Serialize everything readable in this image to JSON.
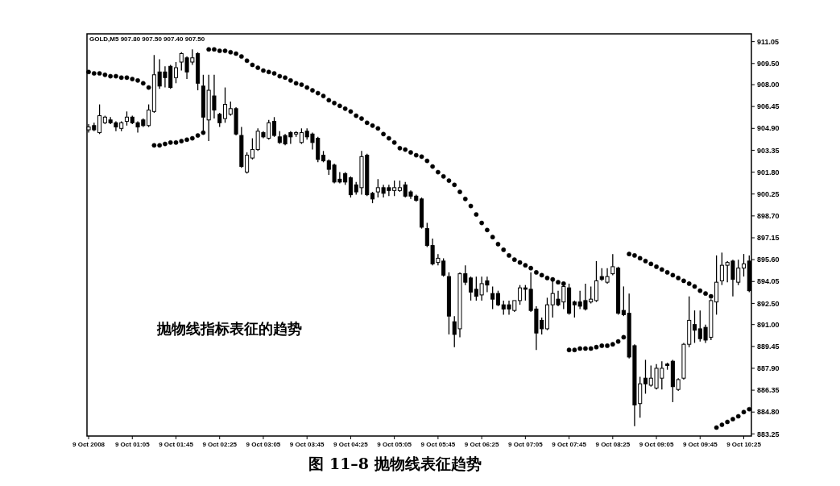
{
  "chart_data": {
    "type": "candlestick",
    "title": "图 11–8   抛物线表征趋势",
    "annotations": [
      "GOLD,M5 907.80 907.50 907.40 907.50",
      "抛物线指标表征的趋势"
    ],
    "categories": [
      "9 Oct 2008",
      null,
      null,
      null,
      null,
      null,
      null,
      null,
      "9 Oct 01:05",
      null,
      null,
      null,
      null,
      null,
      null,
      null,
      "9 Oct 01:45",
      null,
      null,
      null,
      null,
      null,
      null,
      null,
      "9 Oct 02:25",
      null,
      null,
      null,
      null,
      null,
      null,
      null,
      "9 Oct 03:05",
      null,
      null,
      null,
      null,
      null,
      null,
      null,
      "9 Oct 03:45",
      null,
      null,
      null,
      null,
      null,
      null,
      null,
      "9 Oct 04:25",
      null,
      null,
      null,
      null,
      null,
      null,
      null,
      "9 Oct 05:05",
      null,
      null,
      null,
      null,
      null,
      null,
      null,
      "9 Oct 05:45",
      null,
      null,
      null,
      null,
      null,
      null,
      null,
      "9 Oct 06:25",
      null,
      null,
      null,
      null,
      null,
      null,
      null,
      "9 Oct 07:05",
      null,
      null,
      null,
      null,
      null,
      null,
      null,
      "9 Oct 07:45",
      null,
      null,
      null,
      null,
      null,
      null,
      null,
      "9 Oct 08:25",
      null,
      null,
      null,
      null,
      null,
      null,
      null,
      "9 Oct 09:05",
      null,
      null,
      null,
      null,
      null,
      null,
      null,
      "9 Oct 09:45",
      null,
      null,
      null,
      null,
      null,
      null,
      null,
      "9 Oct 10:25",
      null
    ],
    "ohlc": [
      [
        904.8,
        905.2,
        904.6,
        905.0
      ],
      [
        905.1,
        905.3,
        904.7,
        904.8
      ],
      [
        904.6,
        906.6,
        904.5,
        905.8
      ],
      [
        905.3,
        905.8,
        905.2,
        905.7
      ],
      [
        905.5,
        905.7,
        905.2,
        905.3
      ],
      [
        905.3,
        905.4,
        904.7,
        905.0
      ],
      [
        904.9,
        905.4,
        904.7,
        905.3
      ],
      [
        905.4,
        906.1,
        905.1,
        905.7
      ],
      [
        905.7,
        905.8,
        905.2,
        905.3
      ],
      [
        905.3,
        905.4,
        904.6,
        905.0
      ],
      [
        905.5,
        905.6,
        905.0,
        905.1
      ],
      [
        905.1,
        906.6,
        905.0,
        906.2
      ],
      [
        906.1,
        910.1,
        906.0,
        908.7
      ],
      [
        908.9,
        909.8,
        907.7,
        907.9
      ],
      [
        908.9,
        909.3,
        907.8,
        908.5
      ],
      [
        909.3,
        909.4,
        907.7,
        907.8
      ],
      [
        908.5,
        909.6,
        908.1,
        909.2
      ],
      [
        909.6,
        910.3,
        909.0,
        910.2
      ],
      [
        909.9,
        910.0,
        908.4,
        908.9
      ],
      [
        909.6,
        910.5,
        909.4,
        909.9
      ],
      [
        910.2,
        910.3,
        907.6,
        908.1
      ],
      [
        907.9,
        908.7,
        904.7,
        905.7
      ],
      [
        905.5,
        908.7,
        904.0,
        907.6
      ],
      [
        907.2,
        908.7,
        905.6,
        906.2
      ],
      [
        905.9,
        906.0,
        905.0,
        905.3
      ],
      [
        905.6,
        907.8,
        905.3,
        906.6
      ],
      [
        905.9,
        906.8,
        905.8,
        906.3
      ],
      [
        906.3,
        906.4,
        904.4,
        904.5
      ],
      [
        904.4,
        905.0,
        902.1,
        902.2
      ],
      [
        901.8,
        903.2,
        901.7,
        903.0
      ],
      [
        902.8,
        904.2,
        902.7,
        903.4
      ],
      [
        903.4,
        904.9,
        903.3,
        904.7
      ],
      [
        904.6,
        904.7,
        904.2,
        904.3
      ],
      [
        904.2,
        905.5,
        904.1,
        905.3
      ],
      [
        905.4,
        905.7,
        904.3,
        904.4
      ],
      [
        904.3,
        904.7,
        903.8,
        903.9
      ],
      [
        904.4,
        904.5,
        903.7,
        903.8
      ],
      [
        904.6,
        904.7,
        903.8,
        904.3
      ],
      [
        904.5,
        904.7,
        904.3,
        904.6
      ],
      [
        903.9,
        904.9,
        903.8,
        904.6
      ],
      [
        904.7,
        904.9,
        904.1,
        904.3
      ],
      [
        904.5,
        904.6,
        903.4,
        903.9
      ],
      [
        904.2,
        904.3,
        902.5,
        902.7
      ],
      [
        903.0,
        903.3,
        902.5,
        902.6
      ],
      [
        902.6,
        902.7,
        901.6,
        902.0
      ],
      [
        902.3,
        902.4,
        901.0,
        901.1
      ],
      [
        901.3,
        901.8,
        901.0,
        901.1
      ],
      [
        901.7,
        901.8,
        900.9,
        901.1
      ],
      [
        901.4,
        901.5,
        900.0,
        900.2
      ],
      [
        900.9,
        901.1,
        900.2,
        900.4
      ],
      [
        900.7,
        903.3,
        900.2,
        902.9
      ],
      [
        903.0,
        903.1,
        900.1,
        900.2
      ],
      [
        900.3,
        900.4,
        899.6,
        899.9
      ],
      [
        900.4,
        901.3,
        900.0,
        900.7
      ],
      [
        900.7,
        900.9,
        900.0,
        900.3
      ],
      [
        900.7,
        900.9,
        900.1,
        900.5
      ],
      [
        900.5,
        901.2,
        900.1,
        900.7
      ],
      [
        900.5,
        901.2,
        900.4,
        900.7
      ],
      [
        900.9,
        901.1,
        900.0,
        900.1
      ],
      [
        900.4,
        900.5,
        899.9,
        900.1
      ],
      [
        900.1,
        900.2,
        899.7,
        899.8
      ],
      [
        899.9,
        900.0,
        897.8,
        897.9
      ],
      [
        897.8,
        898.2,
        896.5,
        896.6
      ],
      [
        896.6,
        897.1,
        895.2,
        895.3
      ],
      [
        895.4,
        896.0,
        895.2,
        895.7
      ],
      [
        895.5,
        895.7,
        894.4,
        894.5
      ],
      [
        894.4,
        894.7,
        890.3,
        891.6
      ],
      [
        891.2,
        891.6,
        889.4,
        890.3
      ],
      [
        890.7,
        894.7,
        890.1,
        894.6
      ],
      [
        894.6,
        895.2,
        893.8,
        894.0
      ],
      [
        894.3,
        894.4,
        892.7,
        893.3
      ],
      [
        893.5,
        894.4,
        892.7,
        893.0
      ],
      [
        893.1,
        894.4,
        892.7,
        893.9
      ],
      [
        894.1,
        894.4,
        893.3,
        893.8
      ],
      [
        893.2,
        893.7,
        892.1,
        892.8
      ],
      [
        893.2,
        893.4,
        892.3,
        892.4
      ],
      [
        892.4,
        892.7,
        891.7,
        892.1
      ],
      [
        892.4,
        892.7,
        891.7,
        892.1
      ],
      [
        892.0,
        892.7,
        891.9,
        892.7
      ],
      [
        892.7,
        893.8,
        892.4,
        893.6
      ],
      [
        893.6,
        893.8,
        892.7,
        893.5
      ],
      [
        893.5,
        894.7,
        891.9,
        892.0
      ],
      [
        892.1,
        892.3,
        889.2,
        890.4
      ],
      [
        891.3,
        891.5,
        890.3,
        890.7
      ],
      [
        890.7,
        892.9,
        890.6,
        892.4
      ],
      [
        892.4,
        894.2,
        891.5,
        893.2
      ],
      [
        892.8,
        893.4,
        892.3,
        892.4
      ],
      [
        892.6,
        893.9,
        892.1,
        893.7
      ],
      [
        893.6,
        893.9,
        891.7,
        891.8
      ],
      [
        892.6,
        892.7,
        891.5,
        892.4
      ],
      [
        892.6,
        893.4,
        892.1,
        892.3
      ],
      [
        892.7,
        893.9,
        892.0,
        892.1
      ],
      [
        892.6,
        893.7,
        892.5,
        892.8
      ],
      [
        892.7,
        895.5,
        892.6,
        894.1
      ],
      [
        894.4,
        895.0,
        894.1,
        894.2
      ],
      [
        894.0,
        895.0,
        893.9,
        894.4
      ],
      [
        894.6,
        896.0,
        894.5,
        895.1
      ],
      [
        895.0,
        895.1,
        891.7,
        891.8
      ],
      [
        892.0,
        893.7,
        891.6,
        891.7
      ],
      [
        891.8,
        893.2,
        888.6,
        888.7
      ],
      [
        889.5,
        889.6,
        883.8,
        885.3
      ],
      [
        885.4,
        887.3,
        884.4,
        886.8
      ],
      [
        887.2,
        888.5,
        886.1,
        886.8
      ],
      [
        886.7,
        888.1,
        886.6,
        887.2
      ],
      [
        886.5,
        888.2,
        886.4,
        887.9
      ],
      [
        887.2,
        888.4,
        886.4,
        887.9
      ],
      [
        888.2,
        888.3,
        887.8,
        888.1
      ],
      [
        888.4,
        888.5,
        885.5,
        886.6
      ],
      [
        886.4,
        887.2,
        886.3,
        887.1
      ],
      [
        887.2,
        889.7,
        887.1,
        889.6
      ],
      [
        889.6,
        893.0,
        889.4,
        891.3
      ],
      [
        891.0,
        892.0,
        889.7,
        890.6
      ],
      [
        890.7,
        892.0,
        889.8,
        890.0
      ],
      [
        890.8,
        891.0,
        889.7,
        889.9
      ],
      [
        890.1,
        892.8,
        889.9,
        892.7
      ],
      [
        892.6,
        895.9,
        891.7,
        894.0
      ],
      [
        894.1,
        896.1,
        893.8,
        895.2
      ],
      [
        895.2,
        895.5,
        894.0,
        895.4
      ],
      [
        895.5,
        895.6,
        893.0,
        894.2
      ],
      [
        894.0,
        895.6,
        893.8,
        895.0
      ],
      [
        895.0,
        896.0,
        894.4,
        895.3
      ],
      [
        895.5,
        895.9,
        893.3,
        893.4
      ]
    ],
    "series": [
      {
        "type": "scatter",
        "color": "#000000",
        "values": [
          908.9,
          908.8,
          908.8,
          908.7,
          908.6,
          908.6,
          908.5,
          908.5,
          908.4,
          908.3,
          908.1,
          907.8,
          903.7,
          903.7,
          903.8,
          903.9,
          903.9,
          904.0,
          904.1,
          904.2,
          904.4,
          904.6,
          910.5,
          910.5,
          910.4,
          910.4,
          910.3,
          910.2,
          910.0,
          909.7,
          909.4,
          909.2,
          909.0,
          908.9,
          908.8,
          908.6,
          908.5,
          908.3,
          908.1,
          908.0,
          907.8,
          907.6,
          907.4,
          907.2,
          906.9,
          906.7,
          906.5,
          906.3,
          906.1,
          905.8,
          905.6,
          905.3,
          905.1,
          904.9,
          904.5,
          904.2,
          903.9,
          903.5,
          903.4,
          903.2,
          903.0,
          902.9,
          902.6,
          902.2,
          901.8,
          901.5,
          901.2,
          900.9,
          900.4,
          899.9,
          899.4,
          898.8,
          898.2,
          897.7,
          897.2,
          896.7,
          896.3,
          895.9,
          895.6,
          895.4,
          895.2,
          895.0,
          894.7,
          894.5,
          894.3,
          894.2,
          894.0,
          893.9,
          889.2,
          889.2,
          889.3,
          889.3,
          889.3,
          889.4,
          889.5,
          889.5,
          889.6,
          889.8,
          890.1,
          896.0,
          895.9,
          895.7,
          895.5,
          895.3,
          895.1,
          894.9,
          894.7,
          894.5,
          894.3,
          894.1,
          893.9,
          893.7,
          893.4,
          893.2,
          893.0,
          883.7,
          883.9,
          884.1,
          884.3,
          884.5,
          884.8,
          885.0
        ]
      }
    ],
    "marker": "circle",
    "ylim": [
      883.1,
      911.6
    ],
    "yticks": [
      {
        "value": 883.25,
        "label": "883.25"
      },
      {
        "value": 884.8,
        "label": "884.80"
      },
      {
        "value": 886.35,
        "label": "886.35"
      },
      {
        "value": 887.9,
        "label": "887.90"
      },
      {
        "value": 889.45,
        "label": "889.45"
      },
      {
        "value": 891.0,
        "label": "891.00"
      },
      {
        "value": 892.5,
        "label": "892.50"
      },
      {
        "value": 894.05,
        "label": "894.05"
      },
      {
        "value": 895.6,
        "label": "895.60"
      },
      {
        "value": 897.15,
        "label": "897.15"
      },
      {
        "value": 898.7,
        "label": "898.70"
      },
      {
        "value": 900.25,
        "label": "900.25"
      },
      {
        "value": 901.8,
        "label": "901.80"
      },
      {
        "value": 903.35,
        "label": "903.35"
      },
      {
        "value": 904.9,
        "label": "904.90"
      },
      {
        "value": 906.45,
        "label": "906.45"
      },
      {
        "value": 908.0,
        "label": "908.00"
      },
      {
        "value": 909.5,
        "label": "909.50"
      },
      {
        "value": 911.05,
        "label": "911.05"
      }
    ],
    "grid": false
  }
}
